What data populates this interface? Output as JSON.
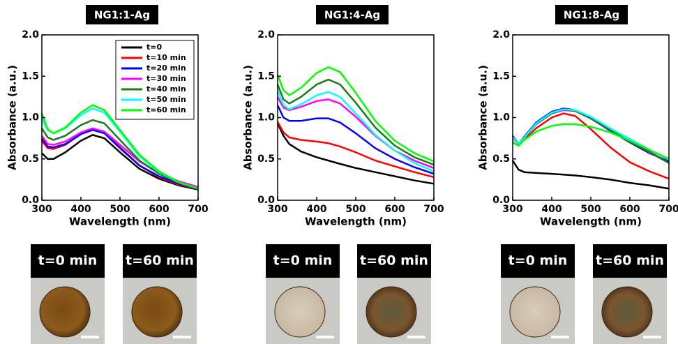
{
  "chart_data": [
    {
      "type": "line",
      "title": "NG1:1-Ag",
      "xlabel": "Wavelength (nm)",
      "ylabel": "Absorbance (a.u.)",
      "x": [
        300,
        315,
        330,
        360,
        400,
        430,
        460,
        500,
        550,
        600,
        650,
        700
      ],
      "xlim": [
        300,
        700
      ],
      "xticks": [
        300,
        400,
        500,
        600,
        700
      ],
      "ylim": [
        0,
        2
      ],
      "yticks": [
        {
          "value": 0,
          "label": "0.0"
        },
        0.5,
        {
          "value": 1,
          "label": "1.0"
        },
        1.5,
        {
          "value": 2,
          "label": "2.0"
        }
      ],
      "legend": "upper right",
      "series": [
        {
          "name": "t=0",
          "color": "#000000",
          "values": [
            0.57,
            0.5,
            0.5,
            0.58,
            0.72,
            0.79,
            0.75,
            0.58,
            0.38,
            0.26,
            0.18,
            0.13
          ]
        },
        {
          "name": "t=10 min",
          "color": "#ff0000",
          "values": [
            0.72,
            0.63,
            0.62,
            0.67,
            0.8,
            0.86,
            0.82,
            0.64,
            0.42,
            0.28,
            0.19,
            0.14
          ]
        },
        {
          "name": "t=20 min",
          "color": "#0000ff",
          "values": [
            0.75,
            0.65,
            0.64,
            0.68,
            0.8,
            0.85,
            0.81,
            0.63,
            0.42,
            0.29,
            0.2,
            0.14
          ]
        },
        {
          "name": "t=30 min",
          "color": "#ff00ff",
          "values": [
            0.78,
            0.68,
            0.67,
            0.71,
            0.82,
            0.87,
            0.83,
            0.67,
            0.47,
            0.33,
            0.23,
            0.16
          ]
        },
        {
          "name": "t=40 min",
          "color": "#1a7a1a",
          "values": [
            0.87,
            0.76,
            0.73,
            0.78,
            0.91,
            0.97,
            0.93,
            0.73,
            0.48,
            0.32,
            0.21,
            0.14
          ]
        },
        {
          "name": "t=50 min",
          "color": "#00ffff",
          "values": [
            0.98,
            0.85,
            0.81,
            0.87,
            1.03,
            1.11,
            1.06,
            0.83,
            0.53,
            0.34,
            0.22,
            0.14
          ]
        },
        {
          "name": "t=60 min",
          "color": "#00ff00",
          "values": [
            1.05,
            0.86,
            0.81,
            0.88,
            1.06,
            1.15,
            1.09,
            0.85,
            0.55,
            0.35,
            0.22,
            0.14
          ]
        }
      ]
    },
    {
      "type": "line",
      "title": "NG1:4-Ag",
      "xlabel": "Wavelength (nm)",
      "ylabel": "Absorbance (a.u.)",
      "x": [
        300,
        315,
        330,
        360,
        400,
        430,
        460,
        500,
        550,
        600,
        650,
        700
      ],
      "xlim": [
        300,
        700
      ],
      "xticks": [
        300,
        400,
        500,
        600,
        700
      ],
      "ylim": [
        0,
        2
      ],
      "yticks": [
        {
          "value": 0,
          "label": "0.0"
        },
        0.5,
        {
          "value": 1,
          "label": "1.0"
        },
        1.5,
        {
          "value": 2,
          "label": "2.0"
        }
      ],
      "series": [
        {
          "color": "#000000",
          "values": [
            0.93,
            0.78,
            0.68,
            0.59,
            0.52,
            0.48,
            0.44,
            0.39,
            0.34,
            0.29,
            0.24,
            0.2
          ]
        },
        {
          "color": "#ff0000",
          "values": [
            0.95,
            0.82,
            0.76,
            0.73,
            0.71,
            0.69,
            0.65,
            0.58,
            0.48,
            0.41,
            0.34,
            0.28
          ]
        },
        {
          "color": "#0000ff",
          "values": [
            1.15,
            1.0,
            0.96,
            0.96,
            0.99,
            0.99,
            0.94,
            0.81,
            0.63,
            0.5,
            0.4,
            0.32
          ]
        },
        {
          "color": "#ff00ff",
          "values": [
            1.25,
            1.12,
            1.09,
            1.13,
            1.2,
            1.22,
            1.17,
            1.01,
            0.78,
            0.6,
            0.48,
            0.39
          ]
        },
        {
          "color": "#1a7a1a",
          "values": [
            1.4,
            1.22,
            1.17,
            1.25,
            1.4,
            1.46,
            1.4,
            1.18,
            0.88,
            0.66,
            0.52,
            0.43
          ]
        },
        {
          "color": "#00ffff",
          "values": [
            1.33,
            1.15,
            1.1,
            1.16,
            1.27,
            1.31,
            1.25,
            1.05,
            0.79,
            0.6,
            0.45,
            0.35
          ]
        },
        {
          "color": "#00ff00",
          "values": [
            1.52,
            1.33,
            1.27,
            1.36,
            1.54,
            1.61,
            1.55,
            1.3,
            0.96,
            0.72,
            0.57,
            0.47
          ]
        }
      ]
    },
    {
      "type": "line",
      "title": "NG1:8-Ag",
      "xlabel": "Wavelength (nm)",
      "ylabel": "Absorbance (a.u.)",
      "x": [
        300,
        315,
        330,
        360,
        400,
        430,
        460,
        500,
        550,
        600,
        650,
        700
      ],
      "xlim": [
        300,
        700
      ],
      "xticks": [
        300,
        400,
        500,
        600,
        700
      ],
      "ylim": [
        0,
        2
      ],
      "yticks": [
        {
          "value": 0,
          "label": "0.0"
        },
        0.5,
        {
          "value": 1,
          "label": "1.0"
        },
        1.5,
        {
          "value": 2,
          "label": "2.0"
        }
      ],
      "series": [
        {
          "color": "#000000",
          "values": [
            0.48,
            0.37,
            0.34,
            0.33,
            0.32,
            0.31,
            0.3,
            0.28,
            0.25,
            0.21,
            0.18,
            0.14
          ]
        },
        {
          "color": "#ff0000",
          "values": [
            0.75,
            0.68,
            0.74,
            0.87,
            1.0,
            1.05,
            1.02,
            0.86,
            0.64,
            0.46,
            0.35,
            0.26
          ]
        },
        {
          "color": "#0000ff",
          "values": [
            0.78,
            0.68,
            0.77,
            0.94,
            1.07,
            1.11,
            1.09,
            0.99,
            0.84,
            0.7,
            0.57,
            0.47
          ]
        },
        {
          "color": "#ff00ff",
          "values": [
            0.78,
            0.67,
            0.76,
            0.92,
            1.05,
            1.09,
            1.08,
            0.99,
            0.85,
            0.71,
            0.59,
            0.45
          ]
        },
        {
          "color": "#1a7a1a",
          "values": [
            0.77,
            0.68,
            0.76,
            0.92,
            1.05,
            1.1,
            1.08,
            0.99,
            0.85,
            0.71,
            0.58,
            0.45
          ]
        },
        {
          "color": "#00ffff",
          "values": [
            0.76,
            0.68,
            0.76,
            0.93,
            1.06,
            1.1,
            1.09,
            1.01,
            0.87,
            0.74,
            0.61,
            0.49
          ]
        },
        {
          "color": "#00ff00",
          "values": [
            0.7,
            0.66,
            0.73,
            0.83,
            0.9,
            0.92,
            0.92,
            0.89,
            0.82,
            0.72,
            0.61,
            0.5
          ]
        }
      ]
    }
  ],
  "photos": [
    [
      "t=0 min",
      "t=60 min"
    ],
    [
      "t=0 min",
      "t=60 min"
    ],
    [
      "t=0 min",
      "t=60 min"
    ]
  ]
}
